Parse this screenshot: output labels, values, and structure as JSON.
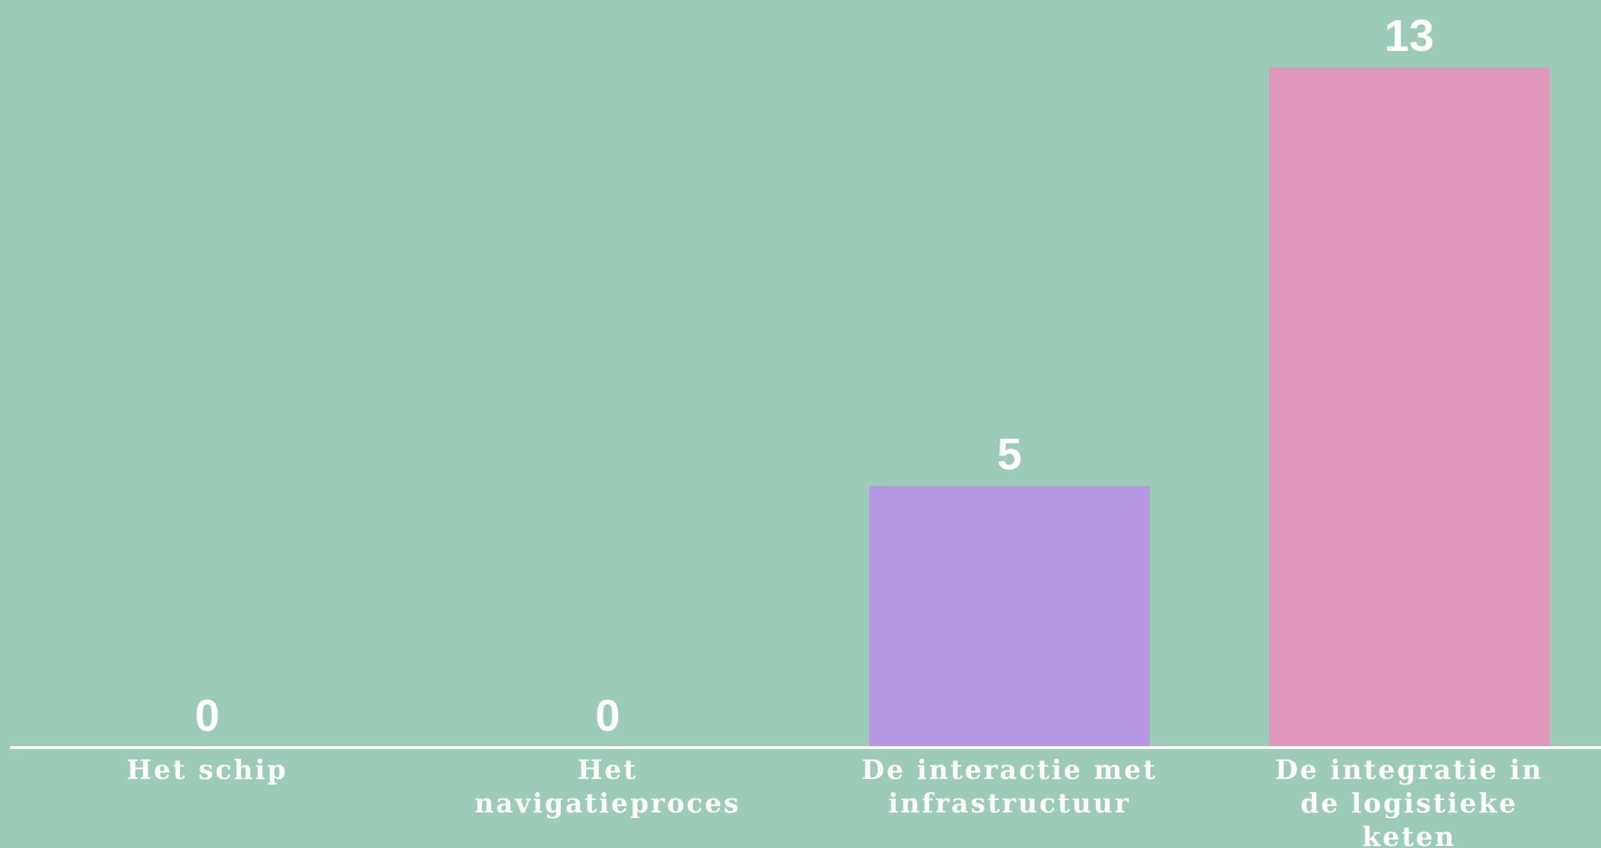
{
  "chart_data": {
    "type": "bar",
    "title": "",
    "xlabel": "",
    "ylabel": "",
    "ylim": [
      0,
      13
    ],
    "grid": false,
    "legend": "none",
    "categories": [
      [
        "Het schip"
      ],
      [
        "Het",
        "navigatieproces"
      ],
      [
        "De interactie met",
        "infrastructuur"
      ],
      [
        "De integratie in",
        "de logistieke",
        "keten"
      ]
    ],
    "values": [
      0,
      0,
      5,
      13
    ],
    "value_labels": [
      "0",
      "0",
      "5",
      "13"
    ],
    "colors": [
      "#9ccbb7",
      "#9ccbb7",
      "#b698e3",
      "#df97bb"
    ],
    "axis_color": "#ffffff",
    "background": "#9ccbb7"
  }
}
